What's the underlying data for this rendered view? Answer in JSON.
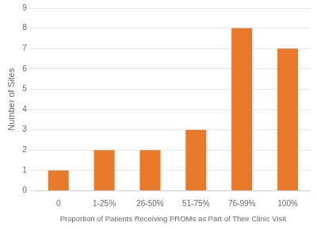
{
  "chart_data": {
    "type": "bar",
    "categories": [
      "0",
      "1-25%",
      "26-50%",
      "51-75%",
      "76-99%",
      "100%"
    ],
    "values": [
      1,
      2,
      2,
      3,
      8,
      7
    ],
    "color": "#E8792A",
    "xlabel": "Proportion of Patients Receiving PROMs as Part of Their Clinic Visit",
    "ylabel": "Number of Sites",
    "ylim": [
      0,
      9
    ],
    "yticks": [
      0,
      1,
      2,
      3,
      4,
      5,
      6,
      7,
      8,
      9
    ],
    "grid": true
  }
}
